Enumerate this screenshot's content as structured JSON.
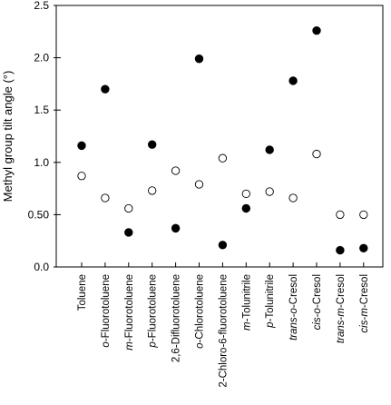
{
  "chart_data": {
    "type": "scatter",
    "ylabel": "Methyl group tilt angle (°)",
    "xlabel": "",
    "ylim": [
      0,
      2.5
    ],
    "yticks": [
      0.0,
      0.5,
      1.0,
      1.5,
      2.0,
      2.5
    ],
    "ytick_labels": [
      "0.0",
      "0.50",
      "1.0",
      "1.5",
      "2.0",
      "2.5"
    ],
    "grid": false,
    "categories": [
      {
        "parts": [
          {
            "t": "Toluene",
            "i": false
          }
        ]
      },
      {
        "parts": [
          {
            "t": "o",
            "i": true
          },
          {
            "t": "-Fluorotoluene",
            "i": false
          }
        ]
      },
      {
        "parts": [
          {
            "t": "m",
            "i": true
          },
          {
            "t": "-Fluorotoluene",
            "i": false
          }
        ]
      },
      {
        "parts": [
          {
            "t": "p",
            "i": true
          },
          {
            "t": "-Fluorotoluene",
            "i": false
          }
        ]
      },
      {
        "parts": [
          {
            "t": "2,6-Difluorotoluene",
            "i": false
          }
        ]
      },
      {
        "parts": [
          {
            "t": "o",
            "i": true
          },
          {
            "t": "-Chlorotoluene",
            "i": false
          }
        ]
      },
      {
        "parts": [
          {
            "t": "2-Chloro-6-fluorotoluene",
            "i": false
          }
        ]
      },
      {
        "parts": [
          {
            "t": "m",
            "i": true
          },
          {
            "t": "-Tolunitrile",
            "i": false
          }
        ]
      },
      {
        "parts": [
          {
            "t": "p",
            "i": true
          },
          {
            "t": "-Tolunitrile",
            "i": false
          }
        ]
      },
      {
        "parts": [
          {
            "t": "trans",
            "i": true
          },
          {
            "t": "-",
            "i": false
          },
          {
            "t": "o",
            "i": true
          },
          {
            "t": "-Cresol",
            "i": false
          }
        ]
      },
      {
        "parts": [
          {
            "t": "cis",
            "i": true
          },
          {
            "t": "-",
            "i": false
          },
          {
            "t": "o",
            "i": true
          },
          {
            "t": "-Cresol",
            "i": false
          }
        ]
      },
      {
        "parts": [
          {
            "t": "trans",
            "i": true
          },
          {
            "t": "-",
            "i": false
          },
          {
            "t": "m",
            "i": true
          },
          {
            "t": "-Cresol",
            "i": false
          }
        ]
      },
      {
        "parts": [
          {
            "t": "cis",
            "i": true
          },
          {
            "t": "-",
            "i": false
          },
          {
            "t": "m",
            "i": true
          },
          {
            "t": "-Cresol",
            "i": false
          }
        ]
      }
    ],
    "series": [
      {
        "marker": "filled",
        "color": "#000000",
        "values": [
          1.16,
          1.7,
          0.33,
          1.17,
          0.37,
          1.99,
          0.21,
          0.56,
          1.12,
          1.78,
          2.26,
          0.16,
          0.18
        ]
      },
      {
        "marker": "open",
        "color": "#000000",
        "values": [
          0.87,
          0.66,
          0.56,
          0.73,
          0.92,
          0.79,
          1.04,
          0.7,
          0.72,
          0.66,
          1.08,
          0.5,
          0.5
        ]
      }
    ]
  }
}
